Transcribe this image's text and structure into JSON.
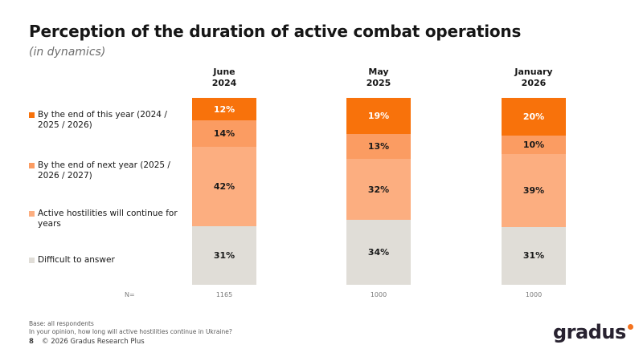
{
  "slide": {
    "title": "Perception of the duration of active combat operations",
    "subtitle": "(in dynamics)",
    "footer": {
      "base_line1": "Base: all respondents",
      "base_line2": "In your opinion, how long will active hostilities continue in Ukraine?",
      "page_number": "8",
      "copyright": "© 2026 Gradus Research Plus"
    },
    "logo": {
      "text": "gradus",
      "dot_color": "#F4731F"
    }
  },
  "chart_data": {
    "type": "bar",
    "stacked": true,
    "orientation": "vertical",
    "title": "Perception of the duration of active combat operations (in dynamics)",
    "categories": [
      "June\n2024",
      "May\n2025",
      "January\n2026"
    ],
    "n_label": "N=",
    "n_values": [
      "1165",
      "1000",
      "1000"
    ],
    "value_suffix": "%",
    "legend_position": "left",
    "axes": "none",
    "series": [
      {
        "name": "By the end of this year (2024 / 2025 / 2026)",
        "color": "#F8720B",
        "label_color": "#FFFFFF",
        "values": [
          12,
          19,
          20
        ]
      },
      {
        "name": "By the end of next year (2025 / 2026 / 2027)",
        "color": "#FB9C62",
        "label_color": "#1A1A1A",
        "values": [
          14,
          13,
          10
        ]
      },
      {
        "name": "Active hostilities will continue for years",
        "color": "#FCAE80",
        "label_color": "#1A1A1A",
        "values": [
          42,
          32,
          39
        ]
      },
      {
        "name": "Difficult to answer",
        "color": "#E0DDD7",
        "label_color": "#1A1A1A",
        "values": [
          31,
          34,
          31
        ]
      }
    ]
  }
}
